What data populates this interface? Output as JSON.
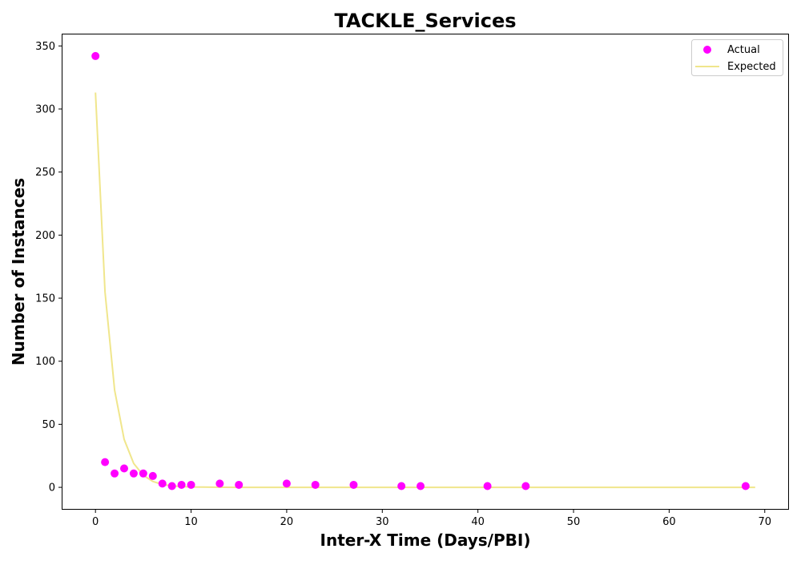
{
  "chart_data": {
    "type": "scatter",
    "title": "TACKLE_Services",
    "xlabel": "Inter-X Time (Days/PBI)",
    "ylabel": "Number of Instances",
    "xlim": [
      -3.45,
      72.45
    ],
    "ylim": [
      -17.1,
      359.1
    ],
    "xticks": [
      0,
      10,
      20,
      30,
      40,
      50,
      60,
      70
    ],
    "yticks": [
      0,
      50,
      100,
      150,
      200,
      250,
      300,
      350
    ],
    "grid": false,
    "legend_position": "top-right",
    "series": [
      {
        "name": "Actual",
        "kind": "scatter",
        "color": "#ff00ff",
        "points": [
          [
            0,
            342
          ],
          [
            1,
            20
          ],
          [
            2,
            11
          ],
          [
            3,
            15
          ],
          [
            4,
            11
          ],
          [
            5,
            11
          ],
          [
            6,
            9
          ],
          [
            7,
            3
          ],
          [
            8,
            1
          ],
          [
            9,
            2
          ],
          [
            10,
            2
          ],
          [
            13,
            3
          ],
          [
            15,
            2
          ],
          [
            20,
            3
          ],
          [
            23,
            2
          ],
          [
            27,
            2
          ],
          [
            32,
            1
          ],
          [
            34,
            1
          ],
          [
            41,
            1
          ],
          [
            45,
            1
          ],
          [
            68,
            1
          ]
        ]
      },
      {
        "name": "Expected",
        "kind": "line",
        "color": "#f0e68c",
        "points": [
          [
            0,
            313
          ],
          [
            1,
            155
          ],
          [
            2,
            77
          ],
          [
            3,
            38
          ],
          [
            4,
            19
          ],
          [
            5,
            9.5
          ],
          [
            6,
            4.7
          ],
          [
            7,
            2.3
          ],
          [
            8,
            1.2
          ],
          [
            9,
            0.6
          ],
          [
            10,
            0.3
          ],
          [
            12,
            0.1
          ],
          [
            15,
            0
          ],
          [
            20,
            0
          ],
          [
            30,
            0
          ],
          [
            40,
            0
          ],
          [
            50,
            0
          ],
          [
            60,
            0
          ],
          [
            69,
            0
          ]
        ]
      }
    ]
  }
}
